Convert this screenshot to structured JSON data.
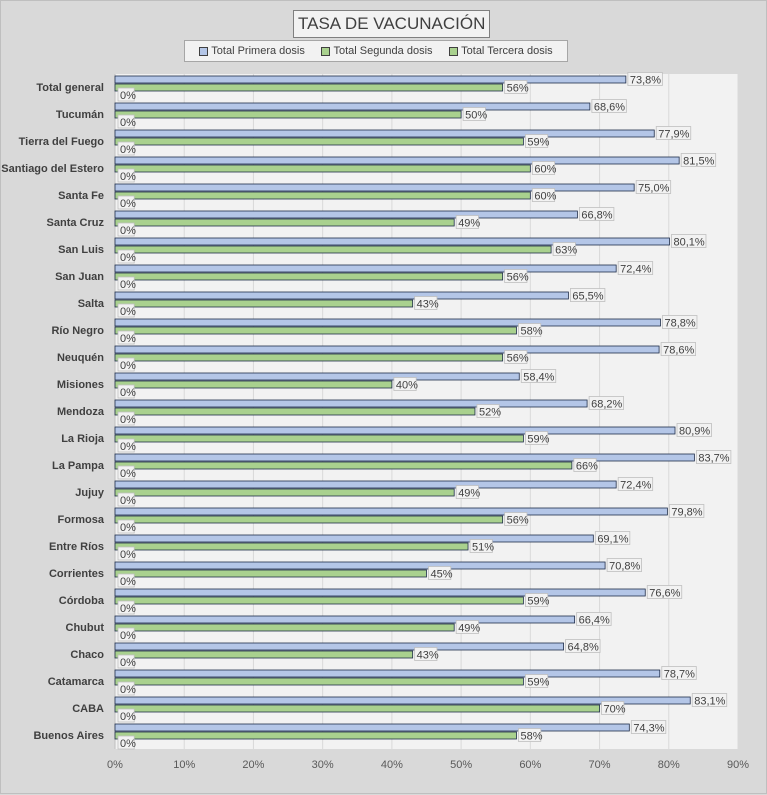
{
  "chart_data": {
    "type": "bar",
    "orientation": "horizontal",
    "title": "TASA DE VACUNACIÓN",
    "xlim": [
      0,
      90
    ],
    "x_ticks": [
      "0%",
      "10%",
      "20%",
      "30%",
      "40%",
      "50%",
      "60%",
      "70%",
      "80%",
      "90%"
    ],
    "grid": true,
    "legend_position": "top",
    "colors": {
      "primera": "#b4c6e7",
      "segunda": "#a9d18e",
      "tercera": "#a9d18e",
      "bar_border": "#1f2d4a",
      "plot_bg": "#f2f2f2",
      "outer_bg": "#d9d9d9"
    },
    "categories": [
      "Total general",
      "Tucumán",
      "Tierra del Fuego",
      "Santiago del Estero",
      "Santa Fe",
      "Santa Cruz",
      "San Luis",
      "San Juan",
      "Salta",
      "Río Negro",
      "Neuquén",
      "Misiones",
      "Mendoza",
      "La Rioja",
      "La Pampa",
      "Jujuy",
      "Formosa",
      "Entre Ríos",
      "Corrientes",
      "Córdoba",
      "Chubut",
      "Chaco",
      "Catamarca",
      "CABA",
      "Buenos Aires"
    ],
    "series": [
      {
        "name": "Total Primera dosis",
        "values": [
          73.8,
          68.6,
          77.9,
          81.5,
          75.0,
          66.8,
          80.1,
          72.4,
          65.5,
          78.8,
          78.6,
          58.4,
          68.2,
          80.9,
          83.7,
          72.4,
          79.8,
          69.1,
          70.8,
          76.6,
          66.4,
          64.8,
          78.7,
          83.1,
          74.3
        ],
        "labels": [
          "73,8%",
          "68,6%",
          "77,9%",
          "81,5%",
          "75,0%",
          "66,8%",
          "80,1%",
          "72,4%",
          "65,5%",
          "78,8%",
          "78,6%",
          "58,4%",
          "68,2%",
          "80,9%",
          "83,7%",
          "72,4%",
          "79,8%",
          "69,1%",
          "70,8%",
          "76,6%",
          "66,4%",
          "64,8%",
          "78,7%",
          "83,1%",
          "74,3%"
        ]
      },
      {
        "name": "Total Segunda dosis",
        "values": [
          56,
          50,
          59,
          60,
          60,
          49,
          63,
          56,
          43,
          58,
          56,
          40,
          52,
          59,
          66,
          49,
          56,
          51,
          45,
          59,
          49,
          43,
          59,
          70,
          58
        ],
        "labels": [
          "56%",
          "50%",
          "59%",
          "60%",
          "60%",
          "49%",
          "63%",
          "56%",
          "43%",
          "58%",
          "56%",
          "40%",
          "52%",
          "59%",
          "66%",
          "49%",
          "56%",
          "51%",
          "45%",
          "59%",
          "49%",
          "43%",
          "59%",
          "70%",
          "58%"
        ]
      },
      {
        "name": "Total Tercera dosis",
        "values": [
          0,
          0,
          0,
          0,
          0,
          0,
          0,
          0,
          0,
          0,
          0,
          0,
          0,
          0,
          0,
          0,
          0,
          0,
          0,
          0,
          0,
          0,
          0,
          0,
          0
        ],
        "labels": [
          "0%",
          "0%",
          "0%",
          "0%",
          "0%",
          "0%",
          "0%",
          "0%",
          "0%",
          "0%",
          "0%",
          "0%",
          "0%",
          "0%",
          "0%",
          "0%",
          "0%",
          "0%",
          "0%",
          "0%",
          "0%",
          "0%",
          "0%",
          "0%",
          "0%"
        ]
      }
    ]
  }
}
